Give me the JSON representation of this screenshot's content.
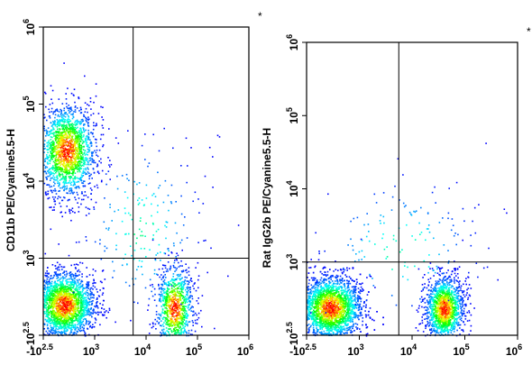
{
  "chart_data": [
    {
      "type": "scatter",
      "title": "",
      "ylabel": "CD11b PE/Cyanine5.5-H",
      "xlabel": "",
      "annotation": "*",
      "x_scale": "log",
      "y_scale": "log",
      "xlim": [
        -316,
        1000000
      ],
      "ylim": [
        -316,
        1000000
      ],
      "x_ticks": [
        {
          "base": "-10",
          "exp": "2.5"
        },
        {
          "base": "10",
          "exp": "3"
        },
        {
          "base": "10",
          "exp": "4"
        },
        {
          "base": "10",
          "exp": "5"
        },
        {
          "base": "10",
          "exp": "6"
        }
      ],
      "y_ticks": [
        {
          "base": "-10",
          "exp": "2.5"
        },
        {
          "base": "10",
          "exp": "3"
        },
        {
          "base": "10",
          "exp": "4"
        },
        {
          "base": "10",
          "exp": "5"
        },
        {
          "base": "10",
          "exp": "6"
        }
      ],
      "gates": {
        "x": 5600,
        "y": 1000
      },
      "grid": false,
      "density_colors": [
        "#0000ff",
        "#00ffff",
        "#00ff00",
        "#ffff00",
        "#ff0000"
      ],
      "populations": [
        {
          "x": 250,
          "y": 25000,
          "spread_x": 0.28,
          "spread_y": 0.3,
          "n": 1800
        },
        {
          "x": 200,
          "y": 200,
          "spread_x": 0.3,
          "spread_y": 0.22,
          "n": 2600
        },
        {
          "x": 35000,
          "y": 160,
          "spread_x": 0.18,
          "spread_y": 0.28,
          "n": 1000
        },
        {
          "x": 8000,
          "y": 2500,
          "spread_x": 0.6,
          "spread_y": 0.6,
          "n": 220
        }
      ]
    },
    {
      "type": "scatter",
      "title": "",
      "ylabel": "Rat IgG2b PE/Cyanine5.5-H",
      "xlabel": "",
      "annotation": "*",
      "x_scale": "log",
      "y_scale": "log",
      "xlim": [
        -316,
        1000000
      ],
      "ylim": [
        -316,
        1000000
      ],
      "x_ticks": [
        {
          "base": "-10",
          "exp": "2.5"
        },
        {
          "base": "10",
          "exp": "3"
        },
        {
          "base": "10",
          "exp": "4"
        },
        {
          "base": "10",
          "exp": "5"
        },
        {
          "base": "10",
          "exp": "6"
        }
      ],
      "y_ticks": [
        {
          "base": "-10",
          "exp": "2.5"
        },
        {
          "base": "10",
          "exp": "3"
        },
        {
          "base": "10",
          "exp": "4"
        },
        {
          "base": "10",
          "exp": "5"
        },
        {
          "base": "10",
          "exp": "6"
        }
      ],
      "gates": {
        "x": 5600,
        "y": 1000
      },
      "grid": false,
      "density_colors": [
        "#0000ff",
        "#00ffff",
        "#00ff00",
        "#ffff00",
        "#ff0000"
      ],
      "populations": [
        {
          "x": 250,
          "y": 180,
          "spread_x": 0.3,
          "spread_y": 0.22,
          "n": 3200
        },
        {
          "x": 40000,
          "y": 170,
          "spread_x": 0.18,
          "spread_y": 0.22,
          "n": 1400
        },
        {
          "x": 6000,
          "y": 1500,
          "spread_x": 0.8,
          "spread_y": 0.5,
          "n": 160
        }
      ]
    }
  ]
}
